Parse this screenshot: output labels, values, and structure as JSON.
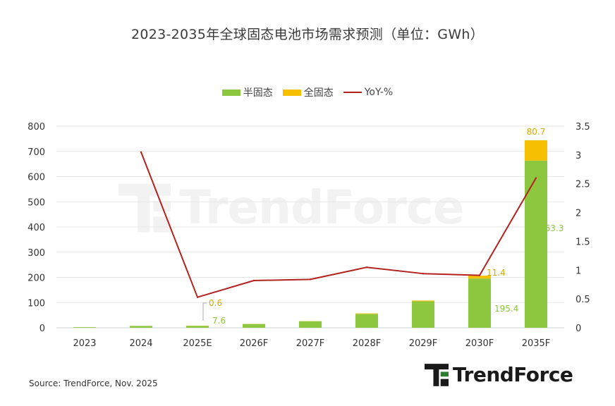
{
  "title": "2023-2035年全球固态电池市场需求预测（单位：GWh）",
  "source": "Source: TrendForce, Nov. 2025",
  "brand": "TrendForce",
  "colors": {
    "semi_solid": "#8DC63F",
    "all_solid": "#F5C000",
    "yoy_line": "#B2231F",
    "grid": "#E6E6E6",
    "label_semi": "#8DC63F",
    "label_all": "#D9A900",
    "brand_green": "#2E7D32"
  },
  "legend": [
    {
      "name": "半固态",
      "kind": "bar",
      "color": "#8DC63F"
    },
    {
      "name": "全固态",
      "kind": "bar",
      "color": "#F5C000"
    },
    {
      "name": "YoY-%",
      "kind": "line",
      "color": "#B2231F"
    }
  ],
  "chart_data": {
    "type": "bar",
    "categories": [
      "2023",
      "2024",
      "2025E",
      "2026F",
      "2027F",
      "2028F",
      "2029F",
      "2030F",
      "2035F"
    ],
    "series": [
      {
        "name": "半固态",
        "type": "bar",
        "stack": "total",
        "axis": "left",
        "values": [
          2.5,
          7.3,
          7.6,
          15,
          26,
          55,
          105,
          195.4,
          663.3
        ]
      },
      {
        "name": "全固态",
        "type": "bar",
        "stack": "total",
        "axis": "left",
        "values": [
          0,
          0,
          0.6,
          0.5,
          0.5,
          2,
          3,
          11.4,
          80.7
        ]
      },
      {
        "name": "YoY-%",
        "type": "line",
        "axis": "right",
        "values": [
          null,
          3.05,
          0.53,
          0.82,
          0.84,
          1.05,
          0.94,
          0.91,
          2.6
        ]
      }
    ],
    "data_labels": [
      {
        "category": "2025E",
        "series": "全固态",
        "text": "0.6"
      },
      {
        "category": "2025E",
        "series": "半固态",
        "text": "7.6"
      },
      {
        "category": "2030F",
        "series": "全固态",
        "text": "11.4"
      },
      {
        "category": "2030F",
        "series": "半固态",
        "text": "195.4"
      },
      {
        "category": "2035F",
        "series": "全固态",
        "text": "80.7"
      },
      {
        "category": "2035F",
        "series": "半固态",
        "text": "663.3"
      }
    ],
    "y_left": {
      "min": 0,
      "max": 800,
      "ticks": [
        0,
        100,
        200,
        300,
        400,
        500,
        600,
        700,
        800
      ]
    },
    "y_right": {
      "min": 0,
      "max": 3.5,
      "ticks": [
        "0",
        "0.5",
        "1",
        "1.5",
        "2",
        "2.5",
        "3",
        "3.5"
      ]
    },
    "grid": true,
    "legend_position": "top"
  }
}
